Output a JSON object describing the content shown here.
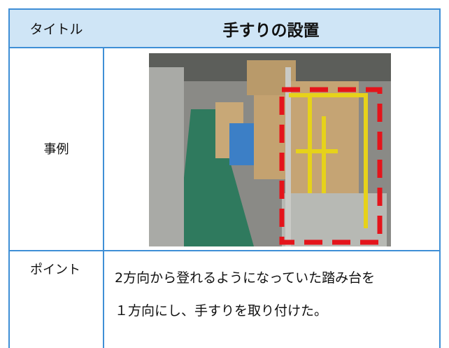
{
  "table": {
    "header": {
      "left": "タイトル",
      "right": "手すりの設置"
    },
    "rows": [
      {
        "label": "事例"
      },
      {
        "label": "ポイント",
        "lines": [
          "2方向から登れるようになっていた踏み台を",
          "１方向にし、手すりを取り付けた。"
        ]
      }
    ]
  }
}
